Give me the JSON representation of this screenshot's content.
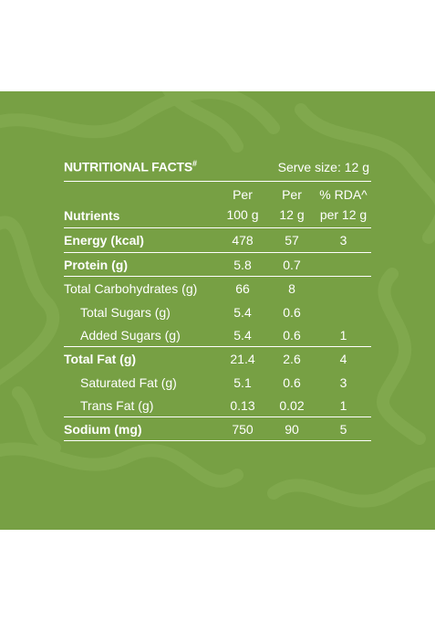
{
  "background_color": "#77a044",
  "title": "NUTRITIONAL FACTS",
  "title_mark": "#",
  "serve_size": "Serve size: 12 g",
  "columns": {
    "nutrients": "Nutrients",
    "per100_line1": "Per",
    "per100_line2": "100 g",
    "per12_line1": "Per",
    "per12_line2": "12 g",
    "rda_line1": "% RDA^",
    "rda_line2": "per 12 g"
  },
  "rows": [
    {
      "name": "Energy (kcal)",
      "per100": "478",
      "per12": "57",
      "rda": "3"
    },
    {
      "name": "Protein (g)",
      "per100": "5.8",
      "per12": "0.7",
      "rda": ""
    },
    {
      "name": "Total Carbohydrates (g)",
      "per100": "66",
      "per12": "8",
      "rda": ""
    },
    {
      "name": "Total Sugars (g)",
      "per100": "5.4",
      "per12": "0.6",
      "rda": ""
    },
    {
      "name": "Added Sugars (g)",
      "per100": "5.4",
      "per12": "0.6",
      "rda": "1"
    },
    {
      "name": "Total Fat (g)",
      "per100": "21.4",
      "per12": "2.6",
      "rda": "4"
    },
    {
      "name": "Saturated Fat (g)",
      "per100": "5.1",
      "per12": "0.6",
      "rda": "3"
    },
    {
      "name": "Trans Fat (g)",
      "per100": "0.13",
      "per12": "0.02",
      "rda": "1"
    },
    {
      "name": "Sodium (mg)",
      "per100": "750",
      "per12": "90",
      "rda": "5"
    }
  ]
}
